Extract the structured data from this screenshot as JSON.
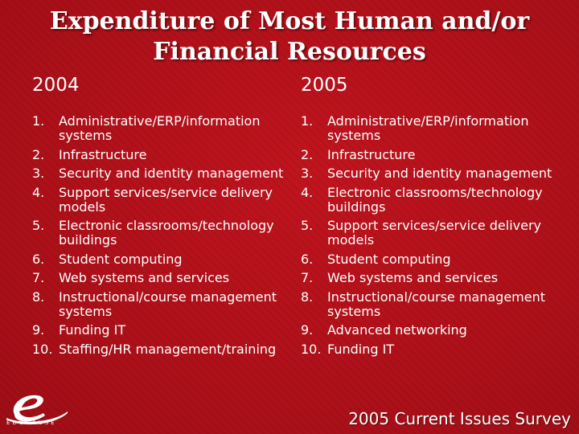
{
  "slide": {
    "title_line1": "Expenditure of Most Human and/or",
    "title_line2": "Financial Resources",
    "left": {
      "year": "2004",
      "items": [
        {
          "num": "1.",
          "text": "Administrative/ERP/information systems"
        },
        {
          "num": "2.",
          "text": "Infrastructure"
        },
        {
          "num": "3.",
          "text": "Security and identity management"
        },
        {
          "num": "4.",
          "text": "Support services/service delivery models"
        },
        {
          "num": "5.",
          "text": "Electronic classrooms/technology buildings"
        },
        {
          "num": "6.",
          "text": "Student computing"
        },
        {
          "num": "7.",
          "text": "Web systems and services"
        },
        {
          "num": "8.",
          "text": "Instructional/course management systems"
        },
        {
          "num": "9.",
          "text": "Funding IT"
        },
        {
          "num": "10.",
          "text": "Staffing/HR management/training"
        }
      ]
    },
    "right": {
      "year": "2005",
      "items": [
        {
          "num": "1.",
          "text": "Administrative/ERP/information systems"
        },
        {
          "num": "2.",
          "text": "Infrastructure"
        },
        {
          "num": "3.",
          "text": "Security and identity management"
        },
        {
          "num": "4.",
          "text": "Electronic classrooms/technology buildings"
        },
        {
          "num": "5.",
          "text": "Support services/service delivery models"
        },
        {
          "num": "6.",
          "text": "Student computing"
        },
        {
          "num": "7.",
          "text": "Web systems and services"
        },
        {
          "num": "8.",
          "text": "Instructional/course management systems"
        },
        {
          "num": "9.",
          "text": "Advanced networking"
        },
        {
          "num": "10.",
          "text": "Funding IT"
        }
      ]
    }
  },
  "footer": {
    "logo_icon": "educause-e-icon",
    "logo_text": "EDUCAUSE",
    "survey_label": "2005 Current Issues Survey"
  }
}
